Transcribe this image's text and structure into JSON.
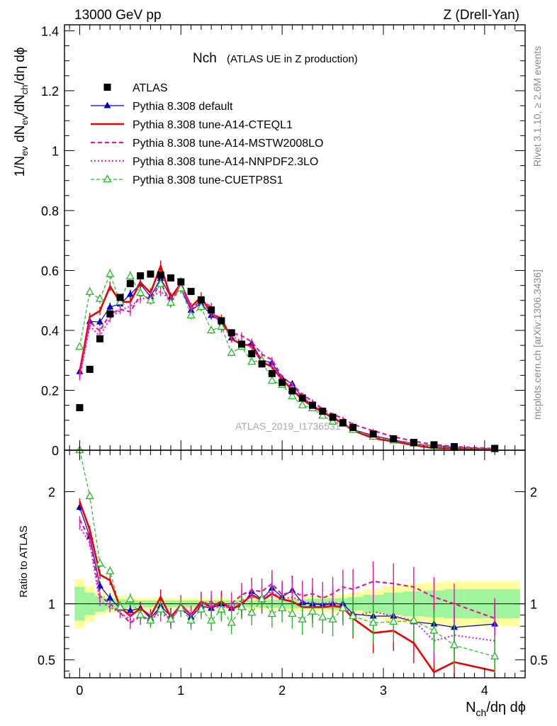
{
  "header": {
    "left": "13000 GeV pp",
    "right": "Z (Drell-Yan)"
  },
  "side_labels": {
    "rivet": "Rivet 3.1.10, ≥ 2.6M events",
    "mcplots": "mcplots.cern.ch [arXiv:1306.3436]"
  },
  "plot_title": {
    "main": "Nch",
    "sub": "(ATLAS UE in Z production)"
  },
  "watermark": "ATLAS_2019_I1736531",
  "axis_labels": {
    "y_main": "1/N",
    "y_main_sub1": "ev",
    "y_main_mid": " dN",
    "y_main_sub2": "ev",
    "y_main_mid2": "/dN",
    "y_main_sub3": "ch",
    "y_main_end": "/dη dϕ",
    "y_ratio": "Ratio to ATLAS",
    "x": "N",
    "x_sub": "ch",
    "x_end": "/dη dϕ"
  },
  "colors": {
    "atlas": "#000000",
    "default": "#0000cc",
    "cteql1": "#ee0000",
    "mstw": "#ee1199",
    "nnpdf": "#dd22cc",
    "cuetp": "#22bb22",
    "band_inner": "#9ef59e",
    "band_outer": "#ffff9e"
  },
  "chart_data": {
    "type": "line",
    "main_panel": {
      "xlim": [
        -0.15,
        4.4
      ],
      "ylim": [
        0,
        1.42
      ],
      "yticks": [
        0,
        0.2,
        0.4,
        0.6,
        0.8,
        1,
        1.2,
        1.4
      ],
      "ytick_labels": [
        "0",
        "0.2",
        "0.4",
        "0.6",
        "0.8",
        "1",
        "1.2",
        "1.4"
      ]
    },
    "ratio_panel": {
      "ylim": [
        0.34,
        2.37
      ],
      "yticks": [
        0.5,
        1,
        2
      ],
      "ytick_labels": [
        "0.5",
        "1",
        "2"
      ]
    },
    "xticks": [
      0,
      1,
      2,
      3,
      4
    ],
    "xtick_labels": [
      "0",
      "1",
      "2",
      "3",
      "4"
    ],
    "x": [
      0.0,
      0.1,
      0.2,
      0.3,
      0.4,
      0.5,
      0.6,
      0.7,
      0.8,
      0.9,
      1.0,
      1.1,
      1.2,
      1.3,
      1.4,
      1.5,
      1.6,
      1.7,
      1.8,
      1.9,
      2.0,
      2.1,
      2.2,
      2.3,
      2.4,
      2.5,
      2.6,
      2.7,
      2.9,
      3.1,
      3.3,
      3.5,
      3.7,
      4.1
    ],
    "series": [
      {
        "name": "ATLAS",
        "key": "atlas",
        "marker": "square",
        "values": [
          0.142,
          0.27,
          0.372,
          0.455,
          0.51,
          0.556,
          0.582,
          0.588,
          0.585,
          0.575,
          0.562,
          0.53,
          0.502,
          0.468,
          0.432,
          0.392,
          0.354,
          0.322,
          0.288,
          0.256,
          0.226,
          0.198,
          0.174,
          0.15,
          0.13,
          0.11,
          0.092,
          0.076,
          0.054,
          0.038,
          0.026,
          0.018,
          0.012,
          0.006
        ]
      },
      {
        "name": "Pythia 8.308 default",
        "key": "default",
        "marker": "triangle",
        "values": [
          0.262,
          0.43,
          0.428,
          0.478,
          0.488,
          0.52,
          0.555,
          0.512,
          0.574,
          0.511,
          0.54,
          0.467,
          0.49,
          0.45,
          0.43,
          0.375,
          0.348,
          0.357,
          0.3,
          0.292,
          0.24,
          0.222,
          0.176,
          0.15,
          0.129,
          0.11,
          0.092,
          0.069,
          0.048,
          0.034,
          0.022,
          0.015,
          0.0095,
          0.0049
        ]
      },
      {
        "name": "Pythia 8.308 tune-A14-CTEQL1",
        "key": "cteql1",
        "marker": "none",
        "values": [
          0.262,
          0.445,
          0.465,
          0.547,
          0.495,
          0.495,
          0.56,
          0.525,
          0.615,
          0.509,
          0.557,
          0.478,
          0.512,
          0.455,
          0.44,
          0.371,
          0.354,
          0.348,
          0.295,
          0.278,
          0.235,
          0.202,
          0.169,
          0.146,
          0.127,
          0.108,
          0.089,
          0.066,
          0.04,
          0.029,
          0.017,
          0.007,
          0.0057,
          0.0024
        ]
      },
      {
        "name": "Pythia 8.308 tune-A14-MSTW2008LO",
        "key": "mstw",
        "marker": "none",
        "values": [
          0.248,
          0.428,
          0.398,
          0.455,
          0.47,
          0.462,
          0.518,
          0.505,
          0.56,
          0.49,
          0.56,
          0.47,
          0.5,
          0.478,
          0.405,
          0.392,
          0.382,
          0.362,
          0.32,
          0.302,
          0.244,
          0.22,
          0.186,
          0.164,
          0.137,
          0.12,
          0.106,
          0.086,
          0.065,
          0.045,
          0.03,
          0.019,
          0.012,
          0.0052
        ]
      },
      {
        "name": "Pythia 8.308 tune-A14-NNPDF2.3LO",
        "key": "nnpdf",
        "marker": "none",
        "values": [
          0.24,
          0.415,
          0.38,
          0.44,
          0.468,
          0.48,
          0.505,
          0.51,
          0.53,
          0.5,
          0.545,
          0.475,
          0.485,
          0.46,
          0.42,
          0.38,
          0.365,
          0.34,
          0.305,
          0.285,
          0.235,
          0.21,
          0.178,
          0.152,
          0.13,
          0.112,
          0.09,
          0.068,
          0.05,
          0.034,
          0.022,
          0.012,
          0.0086,
          0.004
        ]
      },
      {
        "name": "Pythia 8.308 tune-CUETP8S1",
        "key": "cuetp",
        "marker": "open-triangle",
        "values": [
          0.345,
          0.528,
          0.505,
          0.588,
          0.495,
          0.58,
          0.525,
          0.5,
          0.555,
          0.492,
          0.54,
          0.45,
          0.478,
          0.4,
          0.412,
          0.325,
          0.345,
          0.295,
          0.3,
          0.232,
          0.218,
          0.18,
          0.15,
          0.14,
          0.115,
          0.095,
          0.088,
          0.068,
          0.045,
          0.032,
          0.022,
          0.0137,
          0.0076,
          0.0032
        ]
      }
    ],
    "ratio_series": [
      {
        "key": "default",
        "values": [
          1.86,
          1.6,
          1.16,
          1.05,
          0.96,
          0.94,
          0.96,
          0.87,
          0.98,
          0.89,
          0.96,
          0.88,
          0.98,
          0.96,
          1.0,
          0.96,
          0.98,
          1.11,
          1.04,
          1.14,
          1.06,
          1.12,
          1.01,
          1.0,
          0.99,
          1.0,
          1.0,
          0.91,
          0.89,
          0.89,
          0.84,
          0.82,
          0.79,
          0.82
        ]
      },
      {
        "key": "cteql1",
        "values": [
          1.91,
          1.66,
          1.26,
          1.21,
          0.97,
          0.89,
          0.96,
          0.89,
          1.06,
          0.88,
          0.99,
          0.9,
          1.02,
          0.97,
          1.02,
          0.95,
          1.0,
          1.08,
          1.03,
          1.09,
          1.04,
          1.02,
          0.97,
          0.97,
          0.97,
          0.98,
          0.97,
          0.87,
          0.74,
          0.76,
          0.65,
          0.39,
          0.48,
          0.4
        ]
      },
      {
        "key": "mstw",
        "values": [
          1.75,
          1.58,
          1.07,
          1.0,
          0.92,
          0.83,
          0.89,
          0.86,
          0.96,
          0.85,
          1.0,
          0.89,
          1.0,
          1.02,
          0.94,
          1.0,
          1.08,
          1.12,
          1.11,
          1.18,
          1.08,
          1.11,
          1.07,
          1.09,
          1.05,
          1.09,
          1.15,
          1.13,
          1.2,
          1.18,
          1.15,
          1.06,
          1.0,
          0.87
        ]
      },
      {
        "key": "nnpdf",
        "values": [
          1.69,
          1.54,
          1.02,
          0.97,
          0.92,
          0.86,
          0.87,
          0.87,
          0.91,
          0.87,
          0.97,
          0.9,
          0.97,
          0.98,
          0.97,
          0.97,
          1.03,
          1.06,
          1.06,
          1.11,
          1.04,
          1.06,
          1.02,
          1.01,
          1.0,
          1.02,
          0.98,
          0.89,
          0.93,
          0.89,
          0.85,
          0.67,
          0.72,
          0.67
        ]
      },
      {
        "key": "cuetp",
        "values": [
          2.43,
          1.96,
          1.36,
          1.29,
          0.97,
          1.04,
          0.9,
          0.85,
          0.95,
          0.86,
          0.96,
          0.85,
          0.95,
          0.85,
          0.95,
          0.83,
          0.97,
          0.92,
          1.04,
          0.91,
          0.96,
          0.91,
          0.86,
          0.93,
          0.88,
          0.86,
          0.96,
          0.89,
          0.83,
          0.84,
          0.85,
          0.76,
          0.63,
          0.53
        ]
      }
    ],
    "uncertainty_band": {
      "x_edges": [
        -0.05,
        0.05,
        0.15,
        0.25,
        0.35,
        0.45,
        0.55,
        0.65,
        0.75,
        0.85,
        0.95,
        1.05,
        1.15,
        1.25,
        1.35,
        1.45,
        1.55,
        1.65,
        1.75,
        1.85,
        1.95,
        2.05,
        2.15,
        2.25,
        2.35,
        2.45,
        2.55,
        2.65,
        2.8,
        3.0,
        3.2,
        3.4,
        3.6,
        3.8,
        4.35
      ],
      "inner": [
        0.15,
        0.1,
        0.07,
        0.05,
        0.04,
        0.035,
        0.03,
        0.03,
        0.03,
        0.03,
        0.03,
        0.03,
        0.03,
        0.03,
        0.03,
        0.03,
        0.03,
        0.03,
        0.035,
        0.035,
        0.04,
        0.04,
        0.04,
        0.045,
        0.045,
        0.05,
        0.05,
        0.06,
        0.08,
        0.1,
        0.11,
        0.12,
        0.13,
        0.13
      ],
      "outer": [
        0.22,
        0.16,
        0.1,
        0.08,
        0.07,
        0.06,
        0.055,
        0.05,
        0.05,
        0.05,
        0.05,
        0.05,
        0.05,
        0.05,
        0.05,
        0.05,
        0.05,
        0.05,
        0.055,
        0.055,
        0.06,
        0.06,
        0.06,
        0.07,
        0.07,
        0.08,
        0.08,
        0.1,
        0.13,
        0.16,
        0.18,
        0.19,
        0.2,
        0.2
      ]
    }
  }
}
